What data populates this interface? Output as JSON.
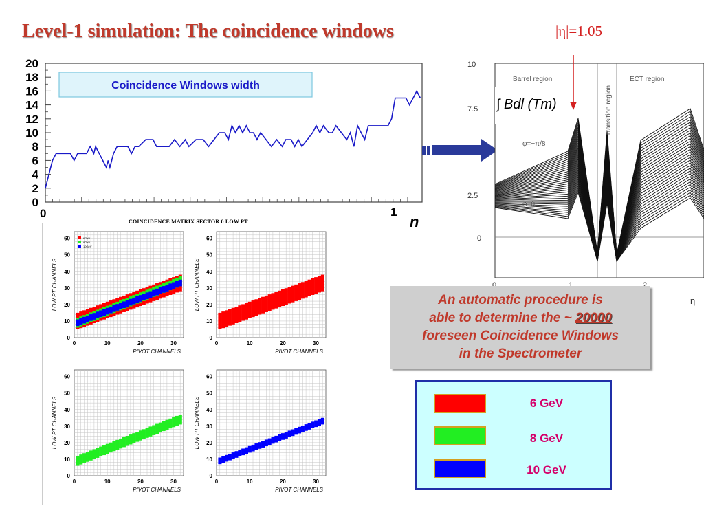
{
  "title": "Level-1 simulation: The coincidence windows",
  "eta_marker": "|η|=1.05",
  "width_chart": {
    "legend": "Coincidence Windows width",
    "x_start": "0",
    "x_end": "1",
    "x_symbol": "η",
    "y_ticks": [
      "20",
      "18",
      "16",
      "14",
      "12",
      "10",
      "8",
      "6",
      "4",
      "2",
      "0"
    ]
  },
  "field_chart": {
    "ylabel": "∫ Bdl (Tm)",
    "region_barrel": "Barrel region",
    "region_transition": "Transition region",
    "region_ect": "ECT region",
    "phi_upper": "φ=−π/8",
    "phi_lower": "φ=0",
    "y_ticks": [
      "10",
      "7.5",
      "2.5",
      "0"
    ],
    "x_ticks": [
      "0",
      "1",
      "2"
    ],
    "x_symbol": "η"
  },
  "matrix": {
    "title": "COINCIDENCE MATRIX SECTOR 0  LOW PT",
    "ylabel": "LOW PT CHANNELS",
    "xlabel": "PIVOT CHANNELS",
    "y_ticks": [
      "60",
      "50",
      "40",
      "30",
      "20",
      "10",
      "0"
    ],
    "x_ticks": [
      "0",
      "10",
      "20",
      "30"
    ],
    "mini_legend": [
      "6GeV",
      "8GeV",
      "10GeV"
    ]
  },
  "procedure": {
    "line1": "An automatic procedure  is",
    "line2_pre": "able to determine the ~ ",
    "line2_num": "20000",
    "line3": "foreseen Coincidence Windows",
    "line4": "in  the Spectrometer"
  },
  "legend": {
    "items": [
      {
        "label": "6 GeV",
        "color": "#ff0000"
      },
      {
        "label": "8 GeV",
        "color": "#22ee22"
      },
      {
        "label": "10 GeV",
        "color": "#0000ff"
      }
    ]
  },
  "colors": {
    "accent": "#c0392b",
    "line": "#1a1ac8",
    "arrow": "#2a3a9a",
    "eta_marker": "#d42020"
  },
  "chart_data": [
    {
      "type": "line",
      "title": "Coincidence Windows width",
      "xlabel": "η",
      "ylabel": "",
      "xlim": [
        0,
        1.05
      ],
      "ylim": [
        0,
        20
      ],
      "series": [
        {
          "name": "Coincidence Windows width",
          "values": [
            {
              "x": 0.0,
              "y": 2
            },
            {
              "x": 0.01,
              "y": 4
            },
            {
              "x": 0.02,
              "y": 6
            },
            {
              "x": 0.03,
              "y": 7
            },
            {
              "x": 0.045,
              "y": 7
            },
            {
              "x": 0.06,
              "y": 7
            },
            {
              "x": 0.07,
              "y": 7
            },
            {
              "x": 0.08,
              "y": 6
            },
            {
              "x": 0.09,
              "y": 7
            },
            {
              "x": 0.1,
              "y": 7
            },
            {
              "x": 0.115,
              "y": 7
            },
            {
              "x": 0.125,
              "y": 8
            },
            {
              "x": 0.135,
              "y": 7
            },
            {
              "x": 0.14,
              "y": 8
            },
            {
              "x": 0.15,
              "y": 7
            },
            {
              "x": 0.16,
              "y": 6
            },
            {
              "x": 0.17,
              "y": 5
            },
            {
              "x": 0.175,
              "y": 6
            },
            {
              "x": 0.18,
              "y": 5
            },
            {
              "x": 0.19,
              "y": 7
            },
            {
              "x": 0.2,
              "y": 8
            },
            {
              "x": 0.215,
              "y": 8
            },
            {
              "x": 0.23,
              "y": 8
            },
            {
              "x": 0.24,
              "y": 7
            },
            {
              "x": 0.25,
              "y": 8
            },
            {
              "x": 0.26,
              "y": 8
            },
            {
              "x": 0.28,
              "y": 9
            },
            {
              "x": 0.3,
              "y": 9
            },
            {
              "x": 0.31,
              "y": 8
            },
            {
              "x": 0.33,
              "y": 8
            },
            {
              "x": 0.345,
              "y": 8
            },
            {
              "x": 0.36,
              "y": 9
            },
            {
              "x": 0.375,
              "y": 8
            },
            {
              "x": 0.39,
              "y": 9
            },
            {
              "x": 0.4,
              "y": 8
            },
            {
              "x": 0.42,
              "y": 9
            },
            {
              "x": 0.44,
              "y": 9
            },
            {
              "x": 0.455,
              "y": 8
            },
            {
              "x": 0.47,
              "y": 9
            },
            {
              "x": 0.485,
              "y": 10
            },
            {
              "x": 0.5,
              "y": 10
            },
            {
              "x": 0.51,
              "y": 9
            },
            {
              "x": 0.52,
              "y": 11
            },
            {
              "x": 0.53,
              "y": 10
            },
            {
              "x": 0.54,
              "y": 11
            },
            {
              "x": 0.55,
              "y": 10
            },
            {
              "x": 0.56,
              "y": 11
            },
            {
              "x": 0.57,
              "y": 10
            },
            {
              "x": 0.58,
              "y": 10
            },
            {
              "x": 0.59,
              "y": 9
            },
            {
              "x": 0.6,
              "y": 10
            },
            {
              "x": 0.615,
              "y": 9
            },
            {
              "x": 0.63,
              "y": 8
            },
            {
              "x": 0.645,
              "y": 9
            },
            {
              "x": 0.66,
              "y": 8
            },
            {
              "x": 0.67,
              "y": 9
            },
            {
              "x": 0.685,
              "y": 9
            },
            {
              "x": 0.695,
              "y": 8
            },
            {
              "x": 0.705,
              "y": 9
            },
            {
              "x": 0.715,
              "y": 8
            },
            {
              "x": 0.73,
              "y": 9
            },
            {
              "x": 0.745,
              "y": 10
            },
            {
              "x": 0.755,
              "y": 11
            },
            {
              "x": 0.765,
              "y": 10
            },
            {
              "x": 0.775,
              "y": 11
            },
            {
              "x": 0.79,
              "y": 10
            },
            {
              "x": 0.8,
              "y": 10
            },
            {
              "x": 0.81,
              "y": 11
            },
            {
              "x": 0.825,
              "y": 10
            },
            {
              "x": 0.84,
              "y": 9
            },
            {
              "x": 0.85,
              "y": 10
            },
            {
              "x": 0.86,
              "y": 8
            },
            {
              "x": 0.87,
              "y": 11
            },
            {
              "x": 0.88,
              "y": 10
            },
            {
              "x": 0.89,
              "y": 9
            },
            {
              "x": 0.9,
              "y": 11
            },
            {
              "x": 0.915,
              "y": 11
            },
            {
              "x": 0.93,
              "y": 11
            },
            {
              "x": 0.945,
              "y": 11
            },
            {
              "x": 0.955,
              "y": 11
            },
            {
              "x": 0.965,
              "y": 12
            },
            {
              "x": 0.975,
              "y": 15
            },
            {
              "x": 0.985,
              "y": 15
            },
            {
              "x": 0.995,
              "y": 15
            },
            {
              "x": 1.005,
              "y": 15
            },
            {
              "x": 1.015,
              "y": 14
            },
            {
              "x": 1.025,
              "y": 15
            },
            {
              "x": 1.035,
              "y": 16
            },
            {
              "x": 1.045,
              "y": 15
            }
          ]
        }
      ]
    },
    {
      "type": "heatmap",
      "title": "COINCIDENCE MATRIX SECTOR 0  LOW PT",
      "xlabel": "PIVOT CHANNELS",
      "ylabel": "LOW PT CHANNELS",
      "xlim": [
        0,
        33
      ],
      "ylim": [
        0,
        64
      ],
      "panels": [
        {
          "name": "6GeV",
          "band_center_start": 10,
          "band_center_end": 33,
          "band_half_width": 5
        },
        {
          "name": "8GeV",
          "band_center_start": 9,
          "band_center_end": 34,
          "band_half_width": 3
        },
        {
          "name": "10GeV",
          "band_center_start": 9,
          "band_center_end": 33,
          "band_half_width": 2
        }
      ]
    }
  ]
}
